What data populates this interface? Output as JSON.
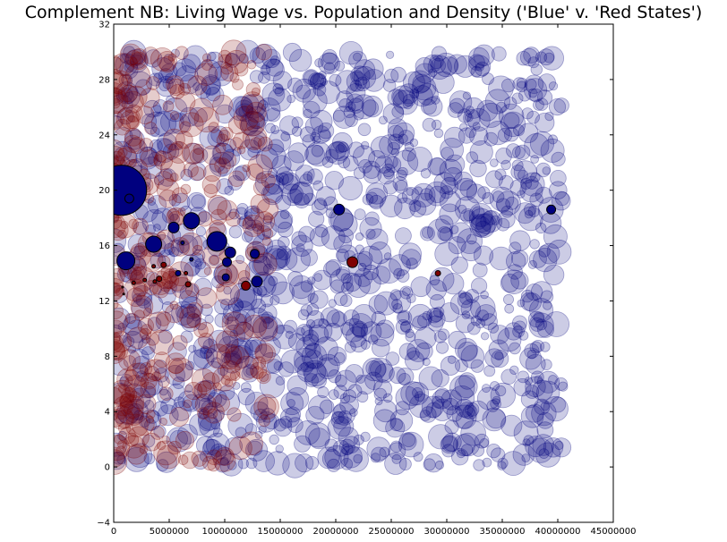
{
  "chart_data": {
    "type": "scatter",
    "title": "Complement NB: Living Wage vs. Population and Density ('Blue' v. 'Red States')",
    "xlabel": "",
    "ylabel": "",
    "xlim": [
      0,
      45000000
    ],
    "ylim": [
      -4,
      32
    ],
    "xticks": [
      0,
      5000000,
      10000000,
      15000000,
      20000000,
      25000000,
      30000000,
      35000000,
      40000000,
      45000000
    ],
    "xtick_labels": [
      "0",
      "5000000",
      "10000000",
      "15000000",
      "20000000",
      "25000000",
      "30000000",
      "35000000",
      "40000000",
      "45000000"
    ],
    "yticks": [
      -4,
      0,
      4,
      8,
      12,
      16,
      20,
      24,
      28,
      32
    ],
    "ytick_labels": [
      "−4",
      "0",
      "4",
      "8",
      "12",
      "16",
      "20",
      "24",
      "28",
      "32"
    ],
    "grid": false,
    "legend": "none",
    "colors": {
      "blue": "#00007f",
      "red": "#7f0000",
      "background_alpha": 0.2
    },
    "background_series": [
      {
        "name": "",
        "color": "#00007f",
        "count": 1300,
        "x_range": [
          0,
          40500000
        ],
        "y_range": [
          0,
          30
        ],
        "note_hidden": true
      },
      {
        "name": "",
        "color": "#7f0000",
        "count": 380,
        "x_range": [
          0,
          14000000
        ],
        "y_range": [
          0,
          30
        ],
        "note_hidden": true
      }
    ],
    "highlight_series": [
      {
        "name": "",
        "color": "#00007f",
        "points": [
          {
            "x": 700000,
            "y": 20.0,
            "size": 28
          },
          {
            "x": 1400000,
            "y": 19.4,
            "size": 5
          },
          {
            "x": 1100000,
            "y": 14.9,
            "size": 10
          },
          {
            "x": 3600000,
            "y": 16.1,
            "size": 9
          },
          {
            "x": 5400000,
            "y": 17.3,
            "size": 6
          },
          {
            "x": 7000000,
            "y": 17.8,
            "size": 9
          },
          {
            "x": 9300000,
            "y": 16.3,
            "size": 11
          },
          {
            "x": 10500000,
            "y": 15.5,
            "size": 6
          },
          {
            "x": 10200000,
            "y": 14.8,
            "size": 5
          },
          {
            "x": 12700000,
            "y": 15.4,
            "size": 5
          },
          {
            "x": 10100000,
            "y": 13.7,
            "size": 4
          },
          {
            "x": 12900000,
            "y": 13.4,
            "size": 6
          },
          {
            "x": 20300000,
            "y": 18.6,
            "size": 6
          },
          {
            "x": 39400000,
            "y": 18.6,
            "size": 5
          },
          {
            "x": 7000000,
            "y": 15.0,
            "size": 2
          },
          {
            "x": 5800000,
            "y": 14.0,
            "size": 3
          },
          {
            "x": 6200000,
            "y": 16.2,
            "size": 2
          }
        ]
      },
      {
        "name": "",
        "color": "#7f0000",
        "points": [
          {
            "x": 21500000,
            "y": 14.8,
            "size": 6
          },
          {
            "x": 29200000,
            "y": 14.0,
            "size": 3
          },
          {
            "x": 11900000,
            "y": 13.1,
            "size": 5
          },
          {
            "x": 4500000,
            "y": 14.6,
            "size": 3
          },
          {
            "x": 3600000,
            "y": 14.5,
            "size": 2
          },
          {
            "x": 4100000,
            "y": 13.6,
            "size": 3
          },
          {
            "x": 3700000,
            "y": 13.4,
            "size": 2
          },
          {
            "x": 6700000,
            "y": 13.2,
            "size": 3
          },
          {
            "x": 6500000,
            "y": 14.0,
            "size": 2
          },
          {
            "x": 2800000,
            "y": 13.5,
            "size": 2
          },
          {
            "x": 1800000,
            "y": 13.3,
            "size": 2
          },
          {
            "x": 800000,
            "y": 13.0,
            "size": 1
          },
          {
            "x": 900000,
            "y": 12.5,
            "size": 1
          }
        ]
      }
    ]
  }
}
